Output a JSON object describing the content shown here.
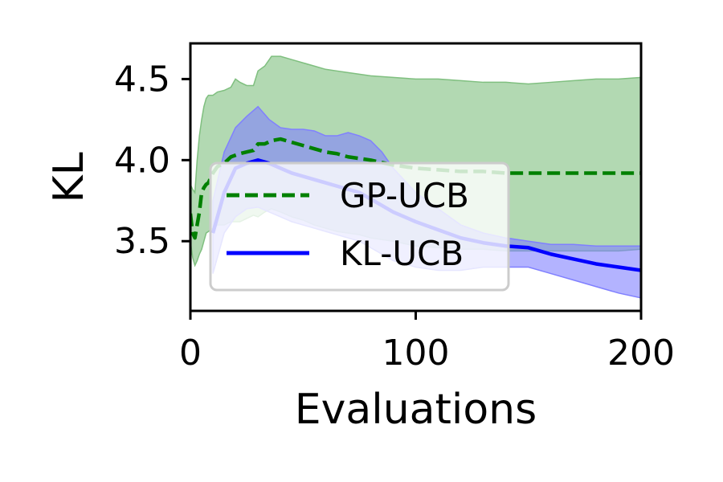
{
  "chart_data": {
    "type": "line",
    "title": "",
    "xlabel": "Evaluations",
    "ylabel": "KL",
    "xlim": [
      0,
      200
    ],
    "ylim": [
      3.07,
      4.72
    ],
    "xticks": [
      0,
      100,
      200
    ],
    "xtick_labels": [
      "0",
      "100",
      "200"
    ],
    "yticks": [
      3.5,
      4.0,
      4.5
    ],
    "ytick_labels": [
      "3.5",
      "4.0",
      "4.5"
    ],
    "grid": false,
    "legend_position": "center-left",
    "series": [
      {
        "name": "GP-UCB",
        "color": "#008000",
        "fill_color": "#7fbf7f",
        "line_style": "dashed",
        "x": [
          0,
          1,
          2,
          3,
          4,
          5,
          6,
          7,
          8,
          10,
          12,
          15,
          18,
          20,
          22,
          25,
          28,
          30,
          33,
          36,
          40,
          45,
          50,
          55,
          60,
          65,
          70,
          75,
          80,
          90,
          100,
          110,
          120,
          130,
          140,
          150,
          160,
          170,
          180,
          190,
          200
        ],
        "mean": [
          3.67,
          3.55,
          3.52,
          3.6,
          3.68,
          3.8,
          3.83,
          3.85,
          3.86,
          3.92,
          3.96,
          3.98,
          4.02,
          4.03,
          4.04,
          4.05,
          4.06,
          4.1,
          4.1,
          4.12,
          4.13,
          4.11,
          4.09,
          4.07,
          4.05,
          4.04,
          4.02,
          4.01,
          4.0,
          3.97,
          3.95,
          3.94,
          3.93,
          3.93,
          3.92,
          3.92,
          3.92,
          3.92,
          3.92,
          3.92,
          3.92
        ],
        "upper": [
          3.85,
          3.82,
          3.8,
          4.0,
          4.15,
          4.25,
          4.33,
          4.38,
          4.4,
          4.4,
          4.42,
          4.43,
          4.45,
          4.5,
          4.48,
          4.46,
          4.46,
          4.55,
          4.58,
          4.64,
          4.64,
          4.62,
          4.6,
          4.58,
          4.56,
          4.55,
          4.54,
          4.53,
          4.52,
          4.51,
          4.5,
          4.5,
          4.49,
          4.48,
          4.48,
          4.47,
          4.48,
          4.49,
          4.5,
          4.5,
          4.51
        ],
        "lower": [
          3.5,
          3.4,
          3.35,
          3.38,
          3.42,
          3.45,
          3.5,
          3.55,
          3.56,
          3.58,
          3.6,
          3.6,
          3.62,
          3.62,
          3.62,
          3.64,
          3.66,
          3.65,
          3.68,
          3.7,
          3.68,
          3.65,
          3.63,
          3.6,
          3.58,
          3.56,
          3.55,
          3.54,
          3.52,
          3.5,
          3.47,
          3.46,
          3.45,
          3.45,
          3.44,
          3.44,
          3.44,
          3.44,
          3.44,
          3.44,
          3.45
        ]
      },
      {
        "name": "KL-UCB",
        "color": "#0000ff",
        "fill_color": "#8080ff",
        "line_style": "solid",
        "x": [
          10,
          15,
          20,
          25,
          30,
          35,
          40,
          45,
          50,
          55,
          60,
          65,
          70,
          75,
          80,
          85,
          90,
          100,
          110,
          120,
          130,
          140,
          150,
          160,
          170,
          180,
          190,
          200
        ],
        "mean": [
          3.55,
          3.8,
          3.95,
          3.98,
          4.0,
          3.98,
          3.95,
          3.92,
          3.9,
          3.88,
          3.86,
          3.84,
          3.82,
          3.8,
          3.76,
          3.72,
          3.68,
          3.62,
          3.57,
          3.52,
          3.49,
          3.47,
          3.46,
          3.42,
          3.39,
          3.36,
          3.34,
          3.32
        ],
        "upper": [
          3.75,
          4.05,
          4.2,
          4.27,
          4.33,
          4.25,
          4.2,
          4.19,
          4.19,
          4.18,
          4.15,
          4.15,
          4.17,
          4.15,
          4.12,
          4.05,
          3.95,
          3.8,
          3.7,
          3.6,
          3.55,
          3.52,
          3.5,
          3.48,
          3.48,
          3.47,
          3.47,
          3.47
        ],
        "lower": [
          3.3,
          3.55,
          3.65,
          3.7,
          3.71,
          3.68,
          3.65,
          3.62,
          3.6,
          3.58,
          3.56,
          3.54,
          3.52,
          3.5,
          3.46,
          3.42,
          3.38,
          3.34,
          3.32,
          3.32,
          3.34,
          3.34,
          3.34,
          3.3,
          3.26,
          3.22,
          3.18,
          3.15
        ]
      }
    ]
  }
}
